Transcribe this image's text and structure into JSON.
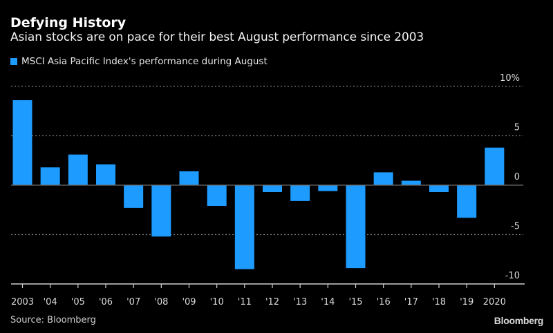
{
  "header": {
    "title": "Defying History",
    "subtitle": "Asian stocks are on pace for their best August performance since 2003"
  },
  "footer": {
    "source": "Source: Bloomberg",
    "brand": "Bloomberg"
  },
  "colors": {
    "background": "#000000",
    "bar": "#1e9bff",
    "gridline": "#777777",
    "axis": "#d0d0d0"
  },
  "chart_data": {
    "type": "bar",
    "title": "Defying History",
    "subtitle": "Asian stocks are on pace for their best August performance since 2003",
    "xlabel": "",
    "ylabel": "",
    "legend": {
      "entries": [
        "MSCI Asia Pacific Index's performance during August"
      ],
      "position": "top-left"
    },
    "categories": [
      "2003",
      "'04",
      "'05",
      "'06",
      "'07",
      "'08",
      "'09",
      "'10",
      "'11",
      "'12",
      "'13",
      "'14",
      "'15",
      "'16",
      "'17",
      "'18",
      "'19",
      "2020"
    ],
    "series": [
      {
        "name": "MSCI Asia Pacific Index's performance during August",
        "values": [
          8.6,
          1.8,
          3.1,
          2.1,
          -2.3,
          -5.2,
          1.4,
          -2.1,
          -8.5,
          -0.7,
          -1.6,
          -0.6,
          -8.4,
          1.3,
          0.45,
          -0.7,
          -3.3,
          3.8
        ]
      }
    ],
    "ylim": [
      -10,
      10
    ],
    "yticks": [
      10,
      5,
      0,
      -5,
      -10
    ],
    "ytick_labels": [
      "10%",
      "5",
      "0",
      "-5",
      "-10"
    ],
    "y_axis_position": "right",
    "grid": true,
    "grid_style": "dotted"
  }
}
